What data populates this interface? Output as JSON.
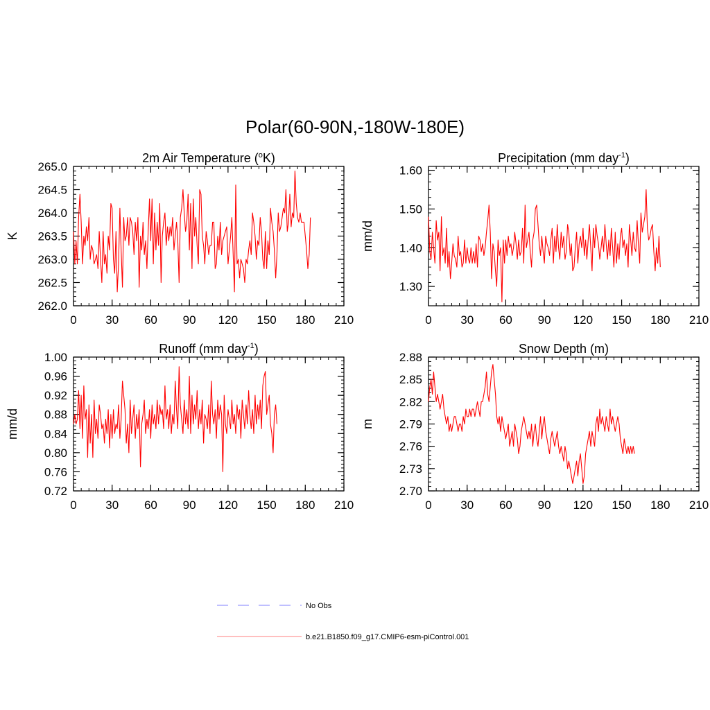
{
  "figure": {
    "title": "Polar(60-90N,-180W-180E)"
  },
  "legend": {
    "items": [
      {
        "label": "No Obs",
        "color": "#9999ff",
        "style": "dashed"
      },
      {
        "label": "b.e21.B1850.f09_g17.CMIP6-esm-piControl.001",
        "color": "#ff9999",
        "style": "solid"
      }
    ]
  },
  "chart_data": [
    {
      "type": "line",
      "title_main": "2m Air Temperature (",
      "title_sup": "o",
      "title_rest": "K)",
      "ylabel": "K",
      "xlim": [
        0,
        210
      ],
      "ylim": [
        262.0,
        265.0
      ],
      "xticks": [
        "0",
        "30",
        "60",
        "90",
        "120",
        "150",
        "180",
        "210"
      ],
      "yticks": [
        "262.0",
        "262.5",
        "263.0",
        "263.5",
        "264.0",
        "264.5",
        "265.0"
      ],
      "series": [
        {
          "name": "b.e21.B1850.f09_g17.CMIP6-esm-piControl.001",
          "color": "#ff0000",
          "values": [
            263.6,
            262.9,
            263.4,
            262.9,
            263.9,
            264.4,
            263.8,
            262.9,
            263.5,
            263.3,
            263.7,
            263.4,
            263.9,
            263.0,
            263.3,
            263.2,
            262.9,
            263.0,
            263.1,
            262.8,
            263.6,
            263.0,
            262.5,
            263.6,
            262.9,
            263.1,
            262.7,
            263.5,
            263.2,
            264.2,
            264.1,
            263.0,
            262.7,
            263.6,
            262.3,
            262.9,
            264.1,
            263.2,
            262.4,
            263.9,
            263.4,
            263.5,
            263.9,
            263.3,
            263.9,
            263.8,
            263.6,
            263.1,
            263.8,
            263.4,
            263.9,
            262.4,
            263.5,
            263.2,
            263.8,
            263.1,
            263.4,
            262.8,
            263.6,
            264.3,
            263.4,
            264.3,
            262.9,
            264.0,
            263.2,
            263.8,
            263.3,
            264.2,
            262.5,
            263.5,
            263.8,
            264.0,
            263.3,
            263.7,
            263.4,
            263.7,
            263.5,
            263.9,
            263.2,
            263.5,
            263.8,
            263.4,
            262.5,
            263.9,
            264.1,
            264.5,
            264.0,
            263.6,
            263.8,
            264.4,
            263.2,
            264.2,
            262.8,
            264.3,
            263.5,
            263.9,
            263.3,
            262.9,
            264.5,
            264.4,
            263.5,
            263.3,
            262.9,
            263.6,
            263.4,
            263.1,
            263.3,
            263.3,
            263.8,
            263.8,
            262.8,
            262.9,
            263.5,
            263.2,
            263.8,
            263.1,
            263.4,
            263.5,
            263.6,
            263.7,
            262.9,
            263.2,
            263.5,
            263.9,
            263.1,
            262.3,
            264.6,
            262.9,
            263.0,
            262.6,
            263.0,
            262.9,
            262.8,
            262.5,
            263.0,
            262.9,
            263.2,
            263.4,
            263.1,
            264.0,
            263.8,
            263.5,
            263.0,
            263.4,
            263.3,
            263.9,
            263.6,
            263.0,
            262.8,
            263.6,
            262.8,
            263.4,
            263.1,
            264.1,
            263.8,
            263.6,
            263.2,
            262.6,
            263.1,
            264.0,
            263.6,
            263.7,
            263.9,
            264.1,
            264.0,
            264.5,
            263.6,
            263.8,
            264.4,
            263.7,
            264.0,
            263.9,
            264.9,
            264.2,
            263.9,
            263.8,
            264.0,
            263.8,
            263.8,
            263.8,
            263.5,
            263.2,
            262.8,
            263.1,
            263.9
          ]
        }
      ]
    },
    {
      "type": "line",
      "title_main": "Precipitation (mm day",
      "title_sup": "-1",
      "title_rest": ")",
      "ylabel": "mm/d",
      "xlim": [
        0,
        210
      ],
      "ylim": [
        1.25,
        1.61
      ],
      "xticks": [
        "0",
        "30",
        "60",
        "90",
        "120",
        "150",
        "180",
        "210"
      ],
      "yticks": [
        "1.30",
        "1.40",
        "1.50",
        "1.60"
      ],
      "series": [
        {
          "name": "b.e21.B1850.f09_g17.CMIP6-esm-piControl.001",
          "color": "#ff0000",
          "values": [
            1.48,
            1.39,
            1.37,
            1.44,
            1.4,
            1.36,
            1.47,
            1.42,
            1.44,
            1.34,
            1.48,
            1.38,
            1.4,
            1.36,
            1.45,
            1.35,
            1.39,
            1.32,
            1.36,
            1.41,
            1.38,
            1.37,
            1.35,
            1.43,
            1.38,
            1.39,
            1.35,
            1.36,
            1.42,
            1.36,
            1.4,
            1.37,
            1.36,
            1.4,
            1.36,
            1.39,
            1.36,
            1.41,
            1.35,
            1.43,
            1.42,
            1.39,
            1.41,
            1.38,
            1.4,
            1.44,
            1.47,
            1.51,
            1.44,
            1.32,
            1.41,
            1.39,
            1.34,
            1.3,
            1.42,
            1.38,
            1.4,
            1.26,
            1.42,
            1.36,
            1.42,
            1.38,
            1.43,
            1.4,
            1.41,
            1.38,
            1.4,
            1.44,
            1.41,
            1.37,
            1.42,
            1.38,
            1.39,
            1.45,
            1.36,
            1.51,
            1.4,
            1.42,
            1.44,
            1.39,
            1.35,
            1.42,
            1.44,
            1.5,
            1.51,
            1.46,
            1.41,
            1.38,
            1.43,
            1.39,
            1.36,
            1.43,
            1.41,
            1.4,
            1.38,
            1.42,
            1.45,
            1.36,
            1.43,
            1.39,
            1.46,
            1.4,
            1.37,
            1.44,
            1.4,
            1.43,
            1.37,
            1.39,
            1.46,
            1.44,
            1.38,
            1.41,
            1.34,
            1.35,
            1.4,
            1.44,
            1.36,
            1.41,
            1.43,
            1.4,
            1.45,
            1.38,
            1.42,
            1.37,
            1.42,
            1.46,
            1.4,
            1.34,
            1.45,
            1.4,
            1.46,
            1.43,
            1.41,
            1.37,
            1.4,
            1.43,
            1.39,
            1.46,
            1.41,
            1.37,
            1.42,
            1.38,
            1.45,
            1.4,
            1.35,
            1.44,
            1.36,
            1.41,
            1.37,
            1.43,
            1.45,
            1.4,
            1.42,
            1.38,
            1.41,
            1.35,
            1.46,
            1.42,
            1.38,
            1.44,
            1.4,
            1.39,
            1.47,
            1.41,
            1.36,
            1.49,
            1.44,
            1.46,
            1.48,
            1.55,
            1.45,
            1.42,
            1.43,
            1.45,
            1.46,
            1.39,
            1.34,
            1.4,
            1.36,
            1.43,
            1.35
          ]
        }
      ]
    },
    {
      "type": "line",
      "title_main": "Runoff (mm day",
      "title_sup": "-1",
      "title_rest": ")",
      "ylabel": "mm/d",
      "xlim": [
        0,
        210
      ],
      "ylim": [
        0.72,
        1.0
      ],
      "xticks": [
        "0",
        "30",
        "60",
        "90",
        "120",
        "150",
        "180",
        "210"
      ],
      "yticks": [
        "0.72",
        "0.76",
        "0.80",
        "0.84",
        "0.88",
        "0.92",
        "0.96",
        "1.00"
      ],
      "series": [
        {
          "name": "b.e21.B1850.f09_g17.CMIP6-esm-piControl.001",
          "color": "#ff0000",
          "values": [
            0.86,
            0.88,
            0.86,
            0.87,
            0.93,
            0.85,
            0.92,
            0.83,
            0.94,
            0.87,
            0.89,
            0.79,
            0.9,
            0.82,
            0.88,
            0.79,
            0.91,
            0.84,
            0.87,
            0.83,
            0.9,
            0.88,
            0.85,
            0.86,
            0.82,
            0.87,
            0.84,
            0.89,
            0.81,
            0.88,
            0.83,
            0.89,
            0.84,
            0.86,
            0.85,
            0.9,
            0.83,
            0.87,
            0.95,
            0.92,
            0.89,
            0.82,
            0.86,
            0.8,
            0.91,
            0.84,
            0.87,
            0.9,
            0.83,
            0.88,
            0.85,
            0.89,
            0.77,
            0.86,
            0.88,
            0.91,
            0.84,
            0.87,
            0.85,
            0.89,
            0.83,
            0.9,
            0.86,
            0.88,
            0.85,
            0.91,
            0.86,
            0.9,
            0.88,
            0.89,
            0.85,
            0.94,
            0.87,
            0.89,
            0.85,
            0.9,
            0.84,
            0.88,
            0.86,
            0.95,
            0.89,
            0.85,
            0.98,
            0.9,
            0.87,
            0.84,
            0.91,
            0.86,
            0.89,
            0.85,
            0.96,
            0.84,
            0.92,
            0.86,
            0.9,
            0.87,
            0.93,
            0.85,
            0.89,
            0.86,
            0.91,
            0.82,
            0.88,
            0.87,
            0.85,
            0.9,
            0.84,
            0.95,
            0.88,
            0.86,
            0.89,
            0.83,
            0.91,
            0.87,
            0.9,
            0.88,
            0.76,
            0.92,
            0.86,
            0.84,
            0.89,
            0.87,
            0.85,
            0.91,
            0.86,
            0.88,
            0.84,
            0.9,
            0.87,
            0.89,
            0.83,
            0.91,
            0.88,
            0.85,
            0.9,
            0.86,
            0.93,
            0.88,
            0.85,
            0.89,
            0.84,
            0.92,
            0.86,
            0.9,
            0.87,
            0.91,
            0.85,
            0.94,
            0.96,
            0.97,
            0.88,
            0.9,
            0.92,
            0.86,
            0.84,
            0.8,
            0.88,
            0.9,
            0.86
          ]
        }
      ]
    },
    {
      "type": "line",
      "title_main": "Snow Depth (m)",
      "title_sup": "",
      "title_rest": "",
      "ylabel": "m",
      "xlim": [
        0,
        210
      ],
      "ylim": [
        2.7,
        2.88
      ],
      "xticks": [
        "0",
        "30",
        "60",
        "90",
        "120",
        "150",
        "180",
        "210"
      ],
      "yticks": [
        "2.70",
        "2.73",
        "2.76",
        "2.79",
        "2.82",
        "2.85",
        "2.88"
      ],
      "series": [
        {
          "name": "b.e21.B1850.f09_g17.CMIP6-esm-piControl.001",
          "color": "#ff0000",
          "values": [
            2.82,
            2.84,
            2.85,
            2.83,
            2.86,
            2.84,
            2.82,
            2.83,
            2.82,
            2.81,
            2.82,
            2.83,
            2.81,
            2.8,
            2.79,
            2.8,
            2.78,
            2.79,
            2.78,
            2.79,
            2.8,
            2.8,
            2.79,
            2.78,
            2.79,
            2.79,
            2.78,
            2.8,
            2.79,
            2.81,
            2.8,
            2.8,
            2.81,
            2.8,
            2.81,
            2.81,
            2.8,
            2.81,
            2.82,
            2.81,
            2.8,
            2.82,
            2.82,
            2.83,
            2.84,
            2.86,
            2.83,
            2.82,
            2.84,
            2.86,
            2.87,
            2.85,
            2.83,
            2.8,
            2.79,
            2.8,
            2.78,
            2.8,
            2.79,
            2.78,
            2.77,
            2.78,
            2.79,
            2.76,
            2.77,
            2.78,
            2.76,
            2.79,
            2.78,
            2.77,
            2.75,
            2.76,
            2.78,
            2.79,
            2.8,
            2.79,
            2.78,
            2.77,
            2.78,
            2.77,
            2.79,
            2.76,
            2.78,
            2.79,
            2.77,
            2.76,
            2.78,
            2.8,
            2.77,
            2.79,
            2.8,
            2.78,
            2.77,
            2.76,
            2.75,
            2.77,
            2.78,
            2.77,
            2.76,
            2.77,
            2.78,
            2.76,
            2.75,
            2.76,
            2.75,
            2.74,
            2.76,
            2.75,
            2.73,
            2.74,
            2.73,
            2.72,
            2.71,
            2.72,
            2.73,
            2.74,
            2.72,
            2.74,
            2.75,
            2.73,
            2.71,
            2.72,
            2.75,
            2.76,
            2.77,
            2.78,
            2.76,
            2.78,
            2.77,
            2.76,
            2.79,
            2.8,
            2.78,
            2.81,
            2.79,
            2.8,
            2.79,
            2.78,
            2.8,
            2.79,
            2.78,
            2.81,
            2.79,
            2.8,
            2.79,
            2.78,
            2.79,
            2.8,
            2.79,
            2.77,
            2.76,
            2.75,
            2.77,
            2.76,
            2.75,
            2.76,
            2.75,
            2.76,
            2.75,
            2.76,
            2.75
          ]
        }
      ]
    }
  ]
}
